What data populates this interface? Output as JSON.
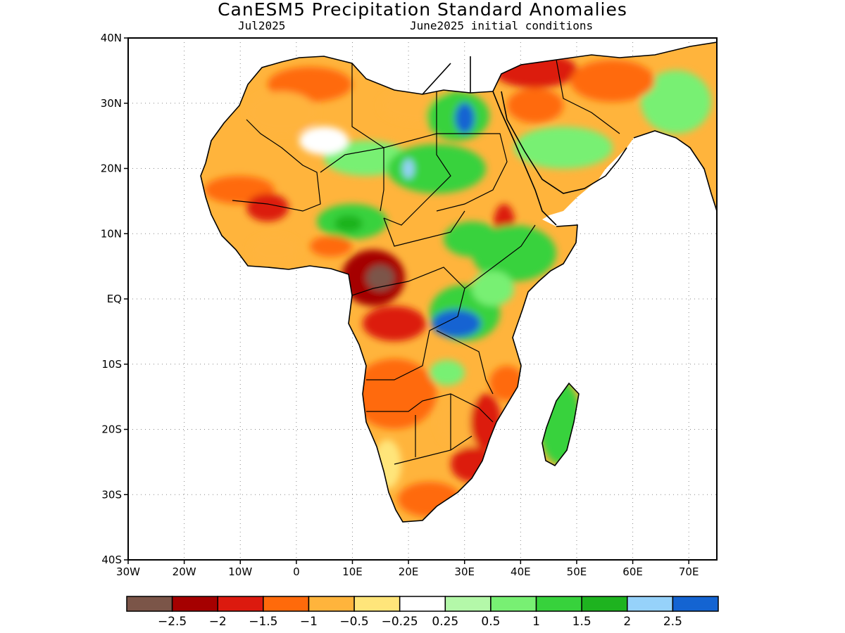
{
  "title": "CanESM5 Precipitation Standard Anomalies",
  "subtitle_left": "Jul2025",
  "subtitle_right": "June2025 initial conditions",
  "lat_ticks": [
    "40N",
    "30N",
    "20N",
    "10N",
    "EQ",
    "10S",
    "20S",
    "30S",
    "40S"
  ],
  "lon_ticks": [
    "30W",
    "20W",
    "10W",
    "0",
    "10E",
    "20E",
    "30E",
    "40E",
    "50E",
    "60E",
    "70E"
  ],
  "colorbar": {
    "colors": [
      "#7b5548",
      "#a50000",
      "#dc1a0f",
      "#ff6a0b",
      "#ffb43c",
      "#ffe57a",
      "#ffffff",
      "#b4f8a9",
      "#78f073",
      "#37d23c",
      "#1eb31f",
      "#96d2fa",
      "#1464d2"
    ],
    "labels": [
      "−2.5",
      "−2",
      "−1.5",
      "−1",
      "−0.5",
      "−0.25",
      "0.25",
      "0.5",
      "1",
      "1.5",
      "2",
      "2.5"
    ]
  },
  "chart_data": {
    "type": "heatmap",
    "title": "CanESM5 Precipitation Standard Anomalies",
    "subtitle": [
      "Jul2025",
      "June2025 initial conditions"
    ],
    "region": "Africa",
    "lon_range": [
      -30,
      75
    ],
    "lat_range": [
      -40,
      40
    ],
    "grid": true,
    "levels": [
      -2.5,
      -2,
      -1.5,
      -1,
      -0.5,
      -0.25,
      0.25,
      0.5,
      1,
      1.5,
      2,
      2.5
    ]
  }
}
